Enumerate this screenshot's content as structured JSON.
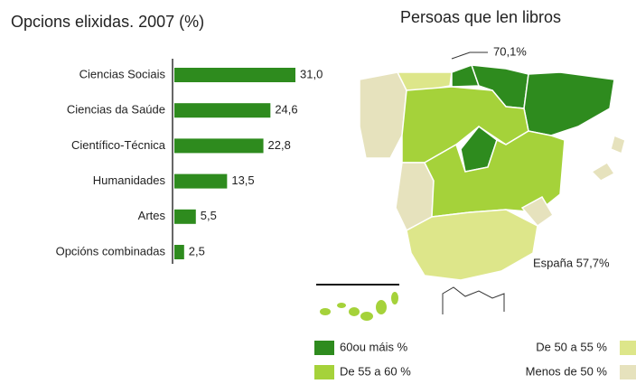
{
  "chart_data": {
    "type": "hbar",
    "title": "Opcions elixidas.  2007 (%)",
    "categories": [
      "Ciencias Sociais",
      "Ciencias da Saúde",
      "Científico-Técnica",
      "Humanidades",
      "Artes",
      "Opcións combinadas"
    ],
    "values": [
      31.0,
      24.6,
      22.8,
      13.5,
      5.5,
      2.5
    ],
    "value_labels": [
      "31,0",
      "24,6",
      "22,8",
      "13,5",
      "5,5",
      "2,5"
    ],
    "color": "#2e8b1e"
  },
  "map": {
    "title": "Persoas que len libros",
    "annotation": "70,1%",
    "total": "España 57,7%",
    "legend": [
      {
        "label": "60ou máis %",
        "color": "#2e8b1e"
      },
      {
        "label": "De 55 a 60 %",
        "color": "#a5d23a"
      },
      {
        "label": "De 50 a 55 %",
        "color": "#dde68a"
      },
      {
        "label": "Menos de 50 %",
        "color": "#e6e2bd"
      }
    ]
  }
}
